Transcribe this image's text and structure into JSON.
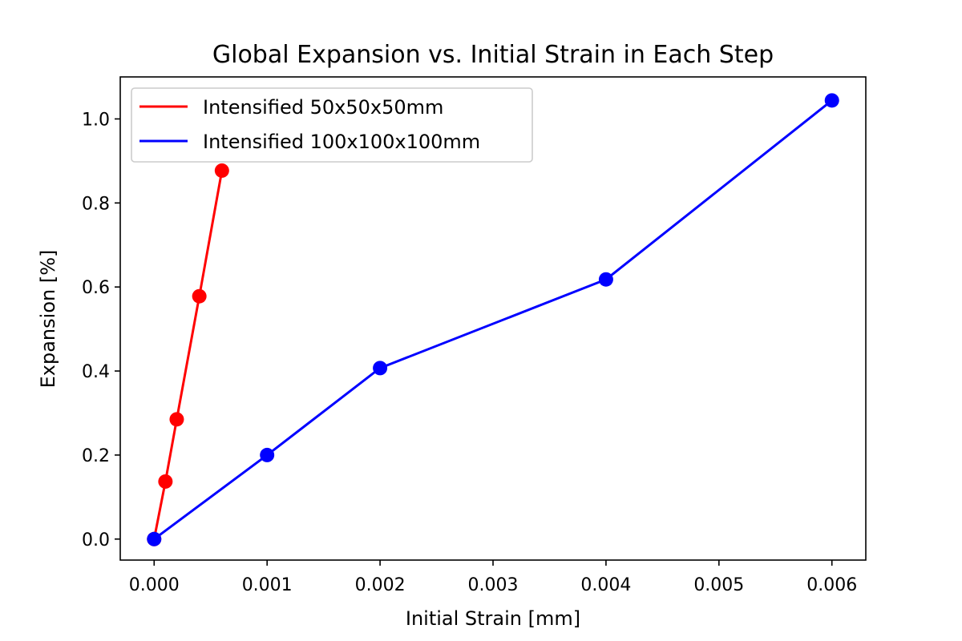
{
  "chart_data": {
    "type": "line",
    "title": "Global Expansion vs. Initial Strain in Each Step",
    "xlabel": "Initial Strain [mm]",
    "ylabel": "Expansion [%]",
    "xlim": [
      -0.0003,
      0.0063
    ],
    "ylim": [
      -0.05,
      1.1
    ],
    "x_ticks": [
      0.0,
      0.001,
      0.002,
      0.003,
      0.004,
      0.005,
      0.006
    ],
    "x_tick_labels": [
      "0.000",
      "0.001",
      "0.002",
      "0.003",
      "0.004",
      "0.005",
      "0.006"
    ],
    "y_ticks": [
      0.0,
      0.2,
      0.4,
      0.6,
      0.8,
      1.0
    ],
    "y_tick_labels": [
      "0.0",
      "0.2",
      "0.4",
      "0.6",
      "0.8",
      "1.0"
    ],
    "grid": false,
    "legend_position": "top-left",
    "series": [
      {
        "name": "Intensified 50x50x50mm",
        "color": "#ff0000",
        "x": [
          0.0,
          0.0001,
          0.0002,
          0.0004,
          0.0006
        ],
        "y": [
          0.0,
          0.137,
          0.285,
          0.578,
          0.877
        ]
      },
      {
        "name": "Intensified 100x100x100mm",
        "color": "#0000ff",
        "x": [
          0.0,
          0.001,
          0.002,
          0.004,
          0.006
        ],
        "y": [
          0.0,
          0.2,
          0.407,
          0.618,
          1.044
        ]
      }
    ]
  }
}
